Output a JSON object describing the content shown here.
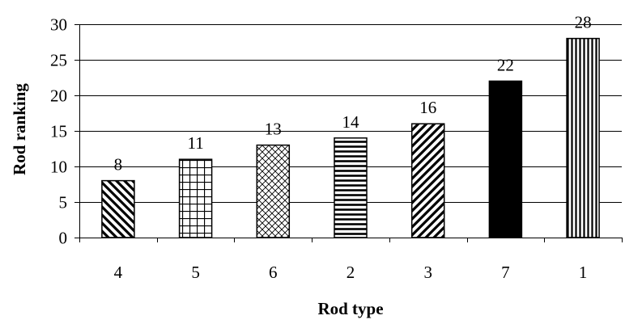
{
  "chart_data": {
    "type": "bar",
    "title": "",
    "xlabel": "Rod type",
    "ylabel": "Rod ranking",
    "categories": [
      "4",
      "5",
      "6",
      "2",
      "3",
      "7",
      "1"
    ],
    "values": [
      8,
      11,
      13,
      14,
      16,
      22,
      28
    ],
    "data_labels": [
      "8",
      "11",
      "13",
      "14",
      "16",
      "22",
      "28"
    ],
    "ylim": [
      0,
      30
    ],
    "yticks": [
      0,
      5,
      10,
      15,
      20,
      25,
      30
    ],
    "grid": "horizontal",
    "legend": "none",
    "bar_patterns": [
      "diagonal-back",
      "grid",
      "crosshatch-diagonal",
      "horizontal-lines",
      "diagonal-forward",
      "solid-black",
      "vertical-lines"
    ]
  }
}
